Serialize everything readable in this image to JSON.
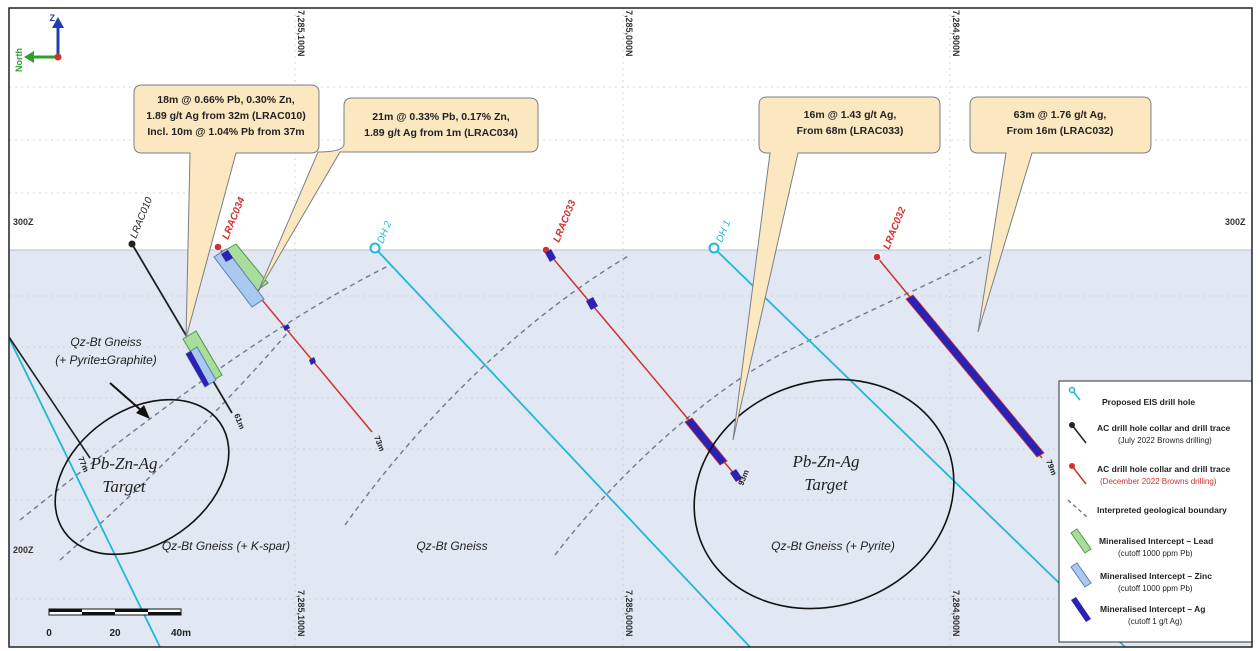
{
  "section": {
    "easting_labels_top": [
      "7,285,100N",
      "7,285,000N",
      "7,284,900N"
    ],
    "easting_labels_bottom": [
      "7,285,100N",
      "7,285,000N",
      "7,284,900N"
    ],
    "elevation_labels": {
      "upper_left": "300Z",
      "upper_right": "300Z",
      "lower_left": "200Z"
    },
    "north_arrow": {
      "up": "Z",
      "left": "North"
    }
  },
  "holes": {
    "lrac010": {
      "name": "LRAC010",
      "depth": "61m",
      "color": "#222222"
    },
    "lrac034": {
      "name": "LRAC034",
      "depth": "73m",
      "color": "#d0312d"
    },
    "lrac033": {
      "name": "LRAC033",
      "depth": "93m",
      "color": "#d0312d"
    },
    "lrac032": {
      "name": "LRAC032",
      "depth": "79m",
      "color": "#d0312d"
    },
    "dh2": {
      "name": "DH 2",
      "color": "#21b7d6"
    },
    "dh1": {
      "name": "DH 1",
      "color": "#21b7d6"
    },
    "left_hole": {
      "depth": "77m"
    }
  },
  "callouts": {
    "c1": [
      "18m @ 0.66% Pb, 0.30% Zn,",
      "1.89 g/t Ag from 32m (LRAC010)",
      "Incl. 10m @ 1.04% Pb from 37m"
    ],
    "c2": [
      "21m @ 0.33% Pb, 0.17% Zn,",
      "1.89 g/t Ag from 1m (LRAC034)"
    ],
    "c3": [
      "16m @ 1.43 g/t Ag,",
      "From 68m (LRAC033)"
    ],
    "c4": [
      "63m @ 1.76 g/t Ag,",
      "From 16m (LRAC032)"
    ]
  },
  "geology": {
    "gneiss_graphite_1": "Qz-Bt Gneiss",
    "gneiss_graphite_2": "(+ Pyrite±Graphite)",
    "gneiss_kspar": "Qz-Bt Gneiss (+ K-spar)",
    "gneiss": "Qz-Bt Gneiss",
    "gneiss_pyrite": "Qz-Bt Gneiss (+ Pyrite)"
  },
  "targets": {
    "left": [
      "Pb-Zn-Ag",
      "Target"
    ],
    "right": [
      "Pb-Zn-Ag",
      "Target"
    ]
  },
  "scale_bar": {
    "labels": [
      "0",
      "20",
      "40m"
    ]
  },
  "legend": {
    "items": [
      {
        "label": "Proposed EIS drill hole",
        "sub": ""
      },
      {
        "label": "AC drill hole collar and drill trace",
        "sub": "(July 2022 Browns drilling)"
      },
      {
        "label": "AC drill hole collar and drill trace",
        "sub": "(December 2022 Browns drilling)"
      },
      {
        "label": "Interpreted geological boundary",
        "sub": ""
      },
      {
        "label": "Mineralised Intercept – Lead",
        "sub": "(cutoff 1000 ppm Pb)"
      },
      {
        "label": "Mineralised Intercept – Zinc",
        "sub": "(cutoff 1000 ppm Pb)"
      },
      {
        "label": "Mineralised Intercept – Ag",
        "sub": "(cutoff 1 g/t Ag)"
      }
    ]
  },
  "colors": {
    "ground": "#e1e7f3",
    "sky": "#ffffff",
    "callout_fill": "#fbe7c0",
    "lead": "#a9dd9c",
    "zinc": "#a9c9ee",
    "silver": "#2a22b5",
    "proposed": "#21b7d6",
    "dec_hole": "#d0312d",
    "july_hole": "#222222",
    "boundary": "#6f7a8a"
  }
}
